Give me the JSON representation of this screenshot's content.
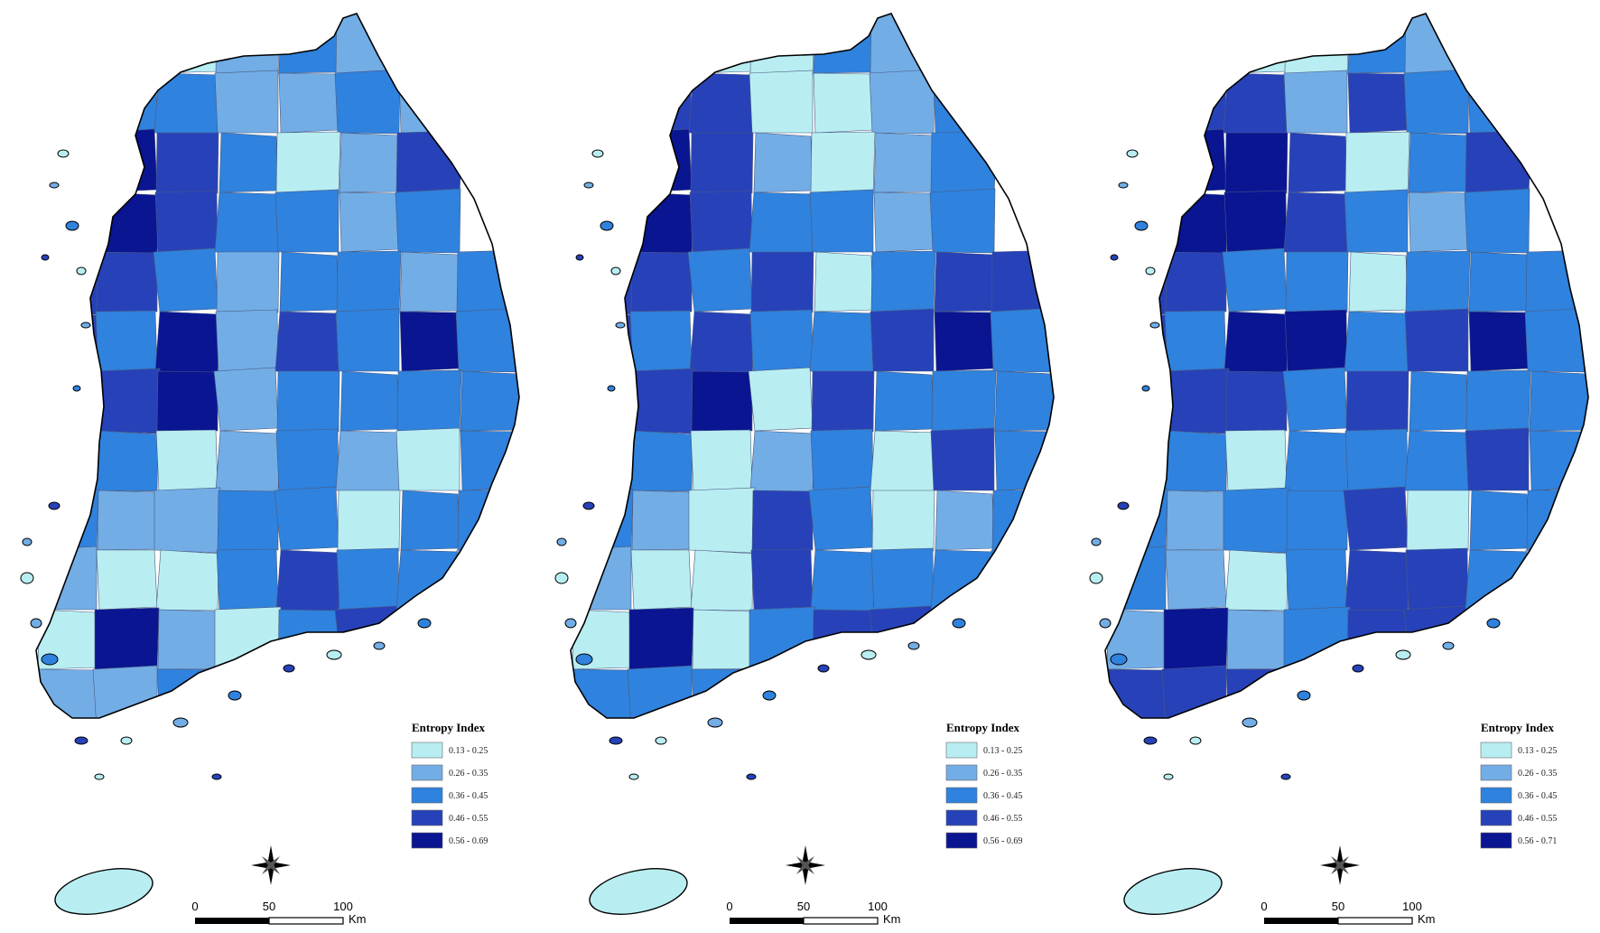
{
  "palette": {
    "class1": "#b8eef2",
    "class2": "#72ade6",
    "class3": "#2f82dd",
    "class4": "#2742b8",
    "class5": "#0a1592",
    "island": "#b8eef2"
  },
  "maps": [
    {
      "legend": {
        "title": "Entropy Index",
        "classes": [
          "0.13 - 0.25",
          "0.26 - 0.35",
          "0.36 - 0.45",
          "0.46 - 0.55",
          "0.56 - 0.69"
        ]
      },
      "scale_bar": {
        "ticks": [
          "0",
          "50",
          "100"
        ],
        "unit": "Km"
      },
      "grid": [
        [
          1,
          1,
          1,
          2,
          3,
          2,
          1,
          0
        ],
        [
          4,
          3,
          3,
          2,
          2,
          3,
          2,
          0
        ],
        [
          4,
          5,
          4,
          3,
          1,
          2,
          4,
          0
        ],
        [
          4,
          5,
          4,
          3,
          3,
          2,
          3,
          0
        ],
        [
          4,
          4,
          3,
          2,
          3,
          3,
          2,
          3
        ],
        [
          4,
          3,
          5,
          2,
          4,
          3,
          5,
          3
        ],
        [
          3,
          4,
          5,
          2,
          3,
          3,
          3,
          3
        ],
        [
          3,
          3,
          1,
          2,
          3,
          2,
          1,
          3
        ],
        [
          3,
          2,
          2,
          3,
          3,
          1,
          3,
          3
        ],
        [
          2,
          1,
          1,
          3,
          4,
          3,
          3,
          2
        ],
        [
          1,
          5,
          2,
          1,
          3,
          4,
          3,
          2
        ],
        [
          2,
          2,
          3,
          3,
          3,
          4,
          3,
          3
        ]
      ]
    },
    {
      "legend": {
        "title": "Entropy Index",
        "classes": [
          "0.13 - 0.25",
          "0.26 - 0.35",
          "0.36 - 0.45",
          "0.46 - 0.55",
          "0.56 - 0.69"
        ]
      },
      "scale_bar": {
        "ticks": [
          "0",
          "50",
          "100"
        ],
        "unit": "Km"
      },
      "grid": [
        [
          2,
          2,
          1,
          1,
          3,
          2,
          1,
          0
        ],
        [
          4,
          4,
          4,
          1,
          1,
          2,
          3,
          0
        ],
        [
          4,
          5,
          4,
          2,
          1,
          2,
          3,
          0
        ],
        [
          5,
          5,
          4,
          3,
          3,
          2,
          3,
          0
        ],
        [
          4,
          4,
          3,
          4,
          1,
          3,
          4,
          4
        ],
        [
          4,
          3,
          4,
          3,
          3,
          4,
          5,
          3
        ],
        [
          5,
          4,
          5,
          1,
          4,
          3,
          3,
          3
        ],
        [
          4,
          3,
          1,
          2,
          3,
          1,
          4,
          3
        ],
        [
          3,
          2,
          1,
          4,
          3,
          1,
          2,
          3
        ],
        [
          2,
          1,
          1,
          4,
          3,
          3,
          3,
          3
        ],
        [
          1,
          5,
          1,
          3,
          4,
          4,
          3,
          3
        ],
        [
          3,
          3,
          3,
          3,
          3,
          4,
          3,
          3
        ]
      ]
    },
    {
      "legend": {
        "title": "Entropy Index",
        "classes": [
          "0.13 - 0.25",
          "0.26 - 0.35",
          "0.36 - 0.45",
          "0.46 - 0.55",
          "0.56 - 0.71"
        ]
      },
      "scale_bar": {
        "ticks": [
          "0",
          "50",
          "100"
        ],
        "unit": "Km"
      },
      "grid": [
        [
          5,
          2,
          1,
          1,
          3,
          2,
          3,
          0
        ],
        [
          4,
          4,
          4,
          2,
          4,
          3,
          3,
          0
        ],
        [
          4,
          5,
          5,
          4,
          1,
          3,
          4,
          0
        ],
        [
          5,
          5,
          5,
          4,
          3,
          2,
          3,
          0
        ],
        [
          4,
          4,
          3,
          3,
          1,
          3,
          3,
          3
        ],
        [
          4,
          3,
          5,
          5,
          3,
          4,
          5,
          3
        ],
        [
          5,
          4,
          4,
          3,
          4,
          3,
          3,
          3
        ],
        [
          4,
          3,
          1,
          3,
          3,
          3,
          4,
          3
        ],
        [
          3,
          2,
          3,
          3,
          4,
          1,
          3,
          3
        ],
        [
          3,
          2,
          1,
          3,
          4,
          4,
          3,
          2
        ],
        [
          2,
          5,
          2,
          3,
          4,
          4,
          5,
          3
        ],
        [
          4,
          4,
          4,
          3,
          3,
          4,
          3,
          3
        ]
      ]
    }
  ]
}
